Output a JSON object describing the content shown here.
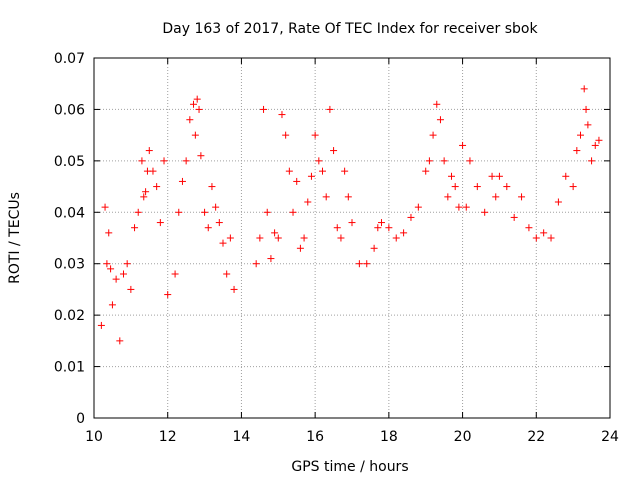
{
  "chart_data": {
    "type": "scatter",
    "marker": "plus",
    "color": "#ff0000",
    "title": "Day 163 of 2017, Rate Of TEC Index for receiver sbok",
    "xlabel": "GPS time / hours",
    "ylabel": "ROTI / TECUs",
    "xlim": [
      10,
      24
    ],
    "ylim": [
      0,
      0.07
    ],
    "xticks": [
      10,
      12,
      14,
      16,
      18,
      20,
      22,
      24
    ],
    "xtick_labels": [
      "10",
      "12",
      "14",
      "16",
      "18",
      "20",
      "22",
      "24"
    ],
    "yticks": [
      0,
      0.01,
      0.02,
      0.03,
      0.04,
      0.05,
      0.06,
      0.07
    ],
    "ytick_labels": [
      "0",
      "0.01",
      "0.02",
      "0.03",
      "0.04",
      "0.05",
      "0.06",
      "0.07"
    ],
    "grid": true,
    "series": [
      {
        "name": "ROTI",
        "x": [
          10.2,
          10.3,
          10.35,
          10.4,
          10.45,
          10.5,
          10.6,
          10.7,
          10.8,
          10.9,
          11.0,
          11.1,
          11.2,
          11.3,
          11.35,
          11.4,
          11.45,
          11.5,
          11.6,
          11.7,
          11.8,
          11.9,
          12.0,
          12.2,
          12.3,
          12.4,
          12.5,
          12.6,
          12.7,
          12.75,
          12.8,
          12.85,
          12.9,
          13.0,
          13.1,
          13.2,
          13.3,
          13.4,
          13.5,
          13.6,
          13.7,
          13.8,
          14.4,
          14.5,
          14.6,
          14.7,
          14.8,
          14.9,
          15.0,
          15.1,
          15.2,
          15.3,
          15.4,
          15.5,
          15.6,
          15.7,
          15.8,
          15.9,
          16.0,
          16.1,
          16.2,
          16.3,
          16.4,
          16.5,
          16.6,
          16.7,
          16.8,
          16.9,
          17.0,
          17.2,
          17.4,
          17.6,
          17.7,
          17.8,
          18.0,
          18.2,
          18.4,
          18.6,
          18.8,
          19.0,
          19.1,
          19.2,
          19.3,
          19.4,
          19.5,
          19.6,
          19.7,
          19.8,
          19.9,
          20.0,
          20.1,
          20.2,
          20.4,
          20.6,
          20.8,
          20.9,
          21.0,
          21.2,
          21.4,
          21.6,
          21.8,
          22.0,
          22.2,
          22.4,
          22.6,
          22.8,
          23.0,
          23.1,
          23.2,
          23.3,
          23.35,
          23.4,
          23.5,
          23.6,
          23.7
        ],
        "values": [
          0.018,
          0.041,
          0.03,
          0.036,
          0.029,
          0.022,
          0.027,
          0.015,
          0.028,
          0.03,
          0.025,
          0.037,
          0.04,
          0.05,
          0.043,
          0.044,
          0.048,
          0.052,
          0.048,
          0.045,
          0.038,
          0.05,
          0.024,
          0.028,
          0.04,
          0.046,
          0.05,
          0.058,
          0.061,
          0.055,
          0.062,
          0.06,
          0.051,
          0.04,
          0.037,
          0.045,
          0.041,
          0.038,
          0.034,
          0.028,
          0.035,
          0.025,
          0.03,
          0.035,
          0.06,
          0.04,
          0.031,
          0.036,
          0.035,
          0.059,
          0.055,
          0.048,
          0.04,
          0.046,
          0.033,
          0.035,
          0.042,
          0.047,
          0.055,
          0.05,
          0.048,
          0.043,
          0.06,
          0.052,
          0.037,
          0.035,
          0.048,
          0.043,
          0.038,
          0.03,
          0.03,
          0.033,
          0.037,
          0.038,
          0.037,
          0.035,
          0.036,
          0.039,
          0.041,
          0.048,
          0.05,
          0.055,
          0.061,
          0.058,
          0.05,
          0.043,
          0.047,
          0.045,
          0.041,
          0.053,
          0.041,
          0.05,
          0.045,
          0.04,
          0.047,
          0.043,
          0.047,
          0.045,
          0.039,
          0.043,
          0.037,
          0.035,
          0.036,
          0.035,
          0.042,
          0.047,
          0.045,
          0.052,
          0.055,
          0.064,
          0.06,
          0.057,
          0.05,
          0.053,
          0.054
        ]
      }
    ]
  }
}
